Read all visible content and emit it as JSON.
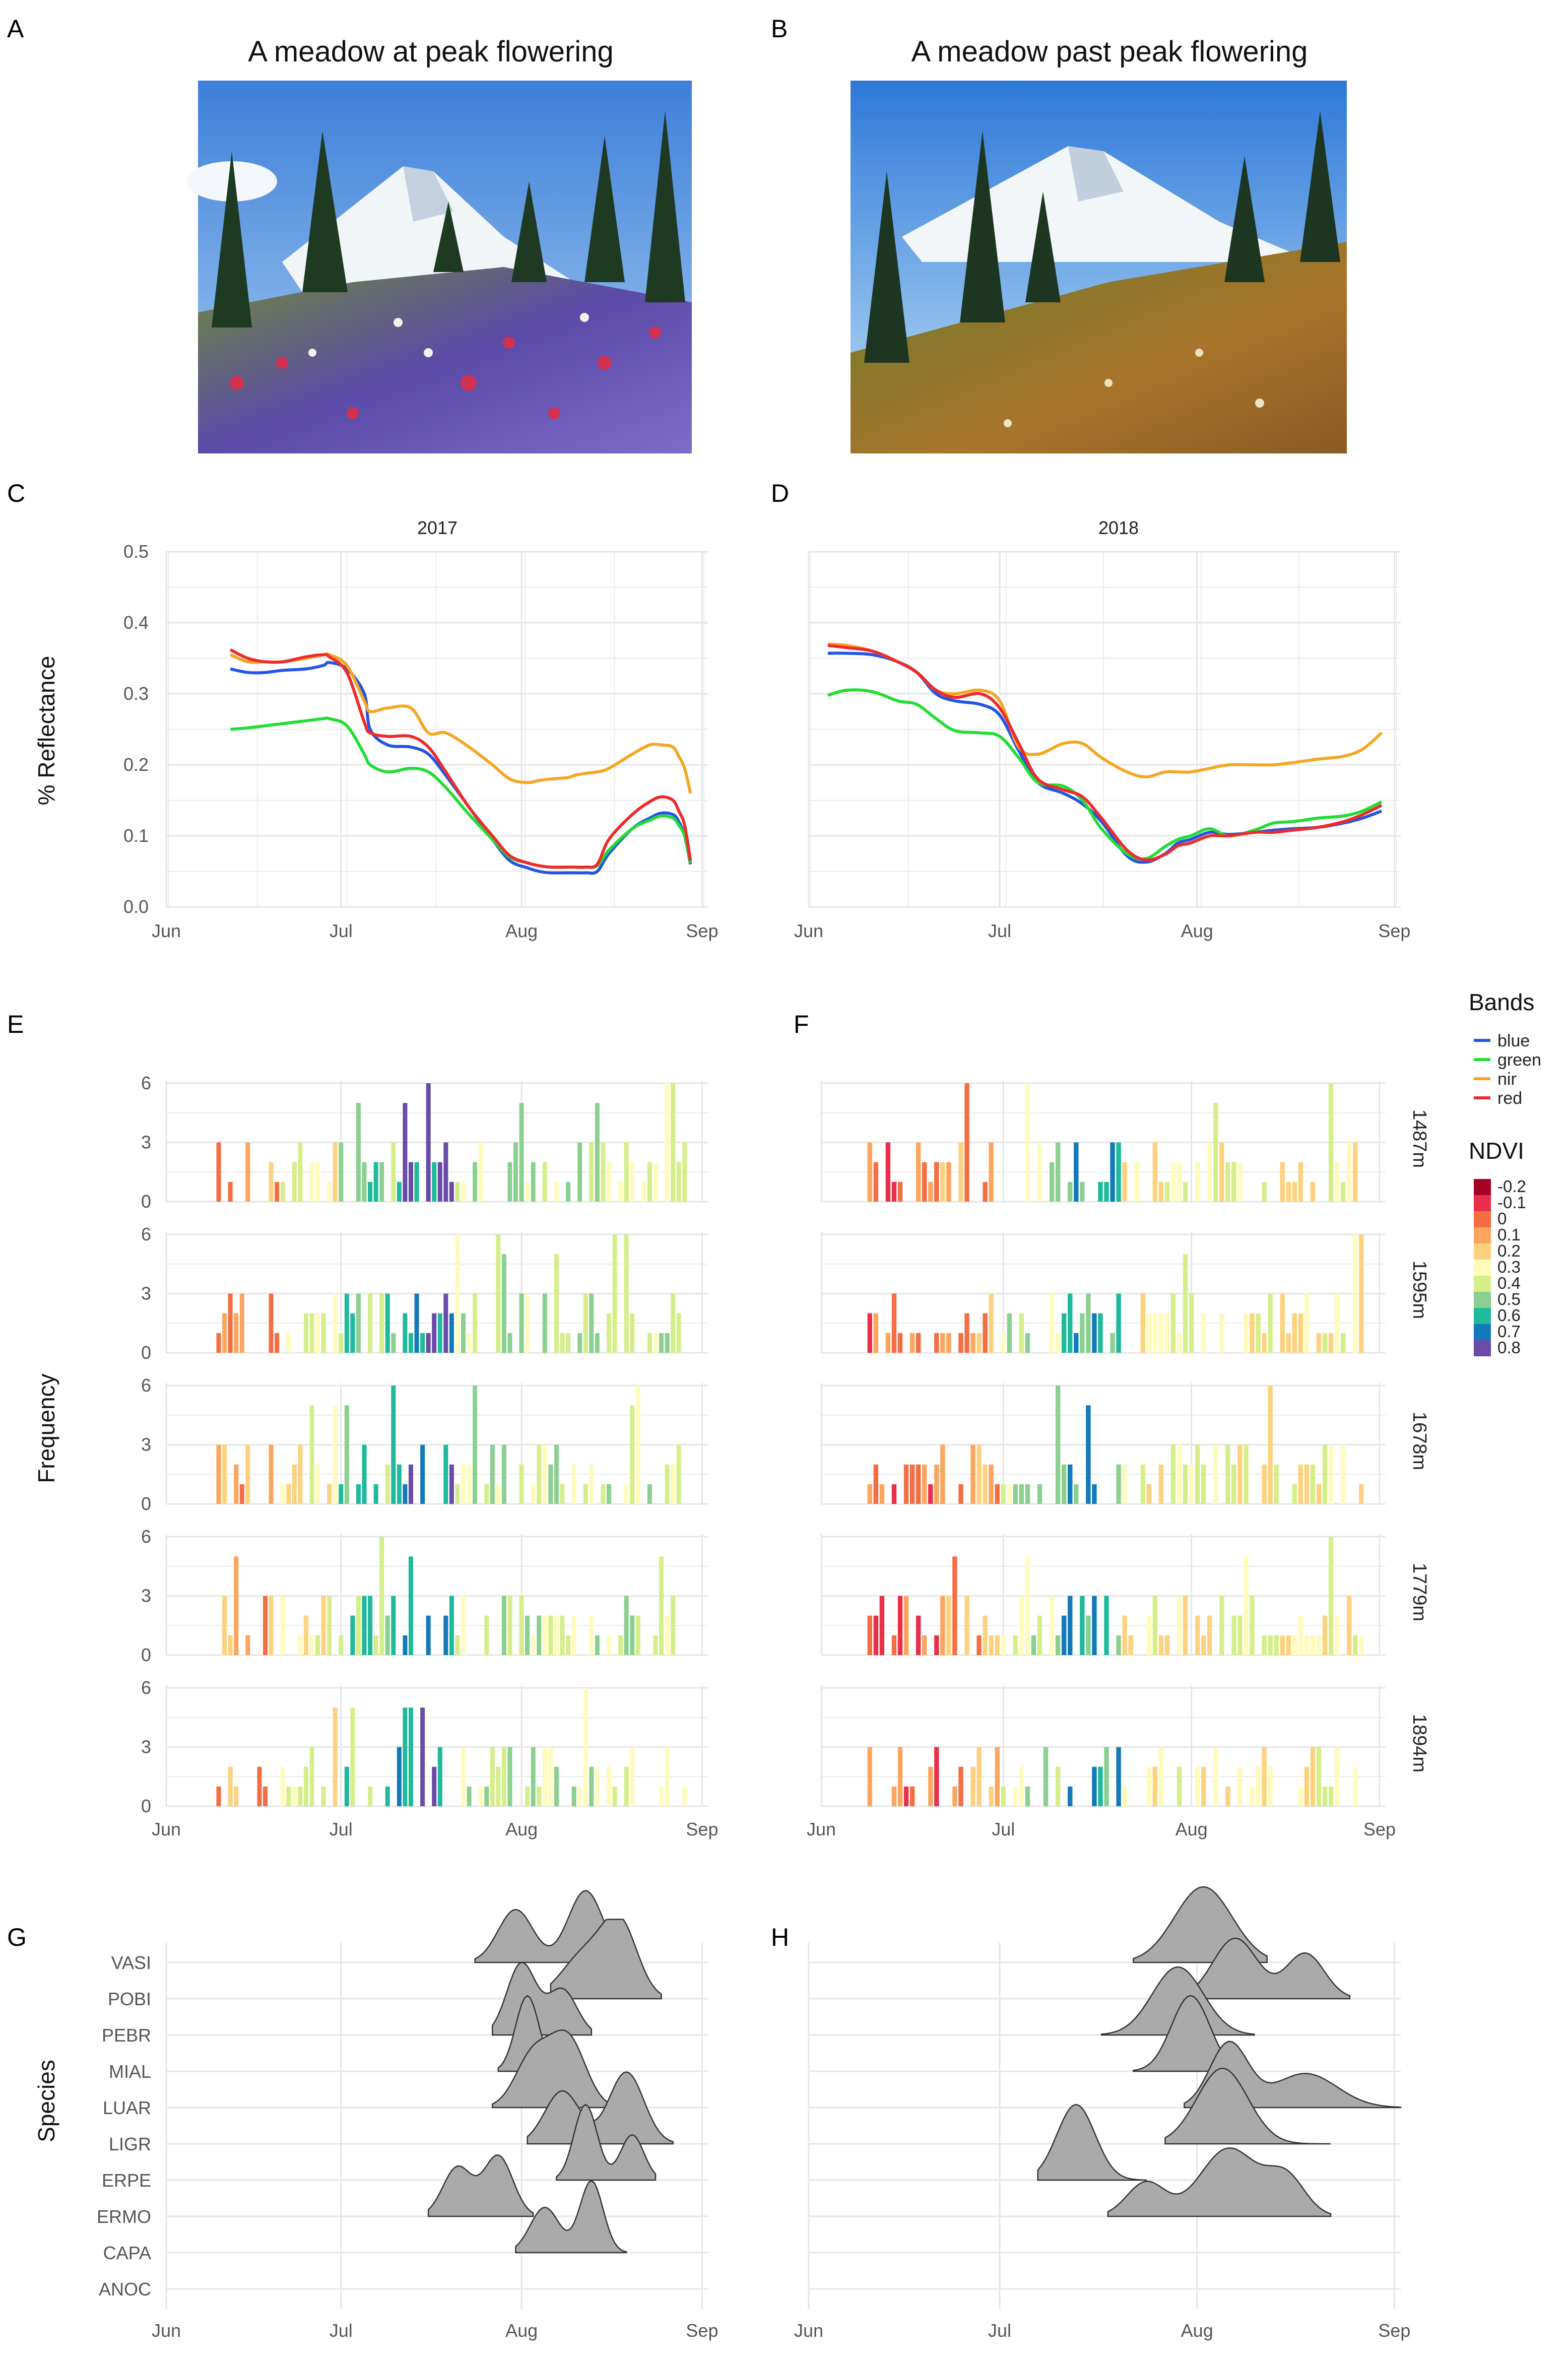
{
  "panel_labels": {
    "A": "A",
    "B": "B",
    "C": "C",
    "D": "D",
    "E": "E",
    "F": "F",
    "G": "G",
    "H": "H"
  },
  "photos": {
    "A": {
      "title": "A meadow at peak flowering"
    },
    "B": {
      "title": "A meadow past peak flowering"
    }
  },
  "colors": {
    "blue": "#2255e6",
    "green": "#22dd33",
    "nir": "#f5a623",
    "red": "#ee2b2b",
    "grid": "#e6e6e6",
    "text": "#555555",
    "ridge_fill": "#aaaaaa",
    "ridge_line": "#333333",
    "ndvi": {
      "-0.2": "#a50026",
      "-0.1": "#e8304a",
      "0": "#f46d43",
      "0.1": "#fca55d",
      "0.2": "#fdd27f",
      "0.3": "#fffbbd",
      "0.4": "#d5ee8a",
      "0.5": "#8bcf91",
      "0.6": "#1fb99c",
      "0.7": "#1479bb",
      "0.8": "#6a4ba8"
    }
  },
  "months": [
    "Jun",
    "Jul",
    "Aug",
    "Sep"
  ],
  "chart_data": [
    {
      "panel": "C",
      "type": "line",
      "title": "2017",
      "ylabel": "% Reflectance",
      "xlabel": "",
      "ylim": [
        0,
        0.5
      ],
      "yticks": [
        "0.0",
        "0.1",
        "0.2",
        "0.3",
        "0.4",
        "0.5"
      ],
      "x_domain": [
        0,
        93
      ],
      "series": [
        {
          "name": "blue",
          "x": [
            11,
            14,
            17,
            20,
            24,
            27,
            28,
            31,
            34,
            35,
            38,
            42,
            45,
            48,
            52,
            56,
            59,
            62,
            64,
            66,
            69,
            70,
            72,
            74,
            76,
            80,
            83,
            85,
            87,
            88,
            89,
            90
          ],
          "y": [
            0.335,
            0.33,
            0.33,
            0.333,
            0.335,
            0.34,
            0.344,
            0.335,
            0.3,
            0.25,
            0.228,
            0.225,
            0.215,
            0.185,
            0.14,
            0.095,
            0.065,
            0.055,
            0.05,
            0.048,
            0.048,
            0.048,
            0.048,
            0.05,
            0.075,
            0.11,
            0.125,
            0.132,
            0.13,
            0.12,
            0.1,
            0.06
          ]
        },
        {
          "name": "green",
          "x": [
            11,
            14,
            17,
            20,
            24,
            27,
            28,
            31,
            34,
            35,
            38,
            42,
            45,
            48,
            52,
            56,
            59,
            62,
            64,
            66,
            69,
            70,
            72,
            74,
            76,
            80,
            83,
            85,
            87,
            88,
            89,
            90
          ],
          "y": [
            0.25,
            0.252,
            0.255,
            0.258,
            0.262,
            0.265,
            0.265,
            0.255,
            0.215,
            0.2,
            0.19,
            0.195,
            0.19,
            0.168,
            0.13,
            0.095,
            0.07,
            0.062,
            0.058,
            0.056,
            0.056,
            0.056,
            0.056,
            0.058,
            0.08,
            0.11,
            0.122,
            0.128,
            0.125,
            0.115,
            0.1,
            0.062
          ]
        },
        {
          "name": "nir",
          "x": [
            11,
            14,
            17,
            20,
            24,
            27,
            28,
            31,
            34,
            35,
            38,
            42,
            45,
            48,
            52,
            56,
            59,
            62,
            64,
            66,
            69,
            70,
            72,
            74,
            76,
            80,
            83,
            85,
            87,
            88,
            89,
            90
          ],
          "y": [
            0.355,
            0.345,
            0.345,
            0.345,
            0.35,
            0.355,
            0.355,
            0.34,
            0.29,
            0.275,
            0.28,
            0.28,
            0.245,
            0.245,
            0.225,
            0.2,
            0.18,
            0.175,
            0.178,
            0.18,
            0.182,
            0.185,
            0.188,
            0.19,
            0.195,
            0.215,
            0.228,
            0.228,
            0.225,
            0.212,
            0.195,
            0.16
          ]
        },
        {
          "name": "red",
          "x": [
            11,
            14,
            17,
            20,
            24,
            27,
            28,
            31,
            34,
            35,
            38,
            42,
            45,
            48,
            52,
            56,
            59,
            62,
            64,
            66,
            69,
            70,
            72,
            74,
            76,
            80,
            83,
            85,
            87,
            88,
            89,
            90
          ],
          "y": [
            0.362,
            0.35,
            0.345,
            0.345,
            0.352,
            0.355,
            0.352,
            0.33,
            0.26,
            0.245,
            0.24,
            0.24,
            0.225,
            0.19,
            0.14,
            0.1,
            0.072,
            0.062,
            0.058,
            0.056,
            0.056,
            0.056,
            0.056,
            0.06,
            0.095,
            0.13,
            0.148,
            0.155,
            0.15,
            0.135,
            0.115,
            0.065
          ]
        }
      ]
    },
    {
      "panel": "D",
      "type": "line",
      "title": "2018",
      "ylabel": "",
      "xlabel": "",
      "ylim": [
        0,
        0.5
      ],
      "x_domain": [
        0,
        93
      ],
      "series": [
        {
          "name": "blue",
          "x": [
            3,
            6,
            10,
            14,
            17,
            20,
            23,
            27,
            30,
            33,
            36,
            40,
            43,
            46,
            50,
            53,
            56,
            58,
            60,
            63,
            66,
            70,
            73,
            76,
            80,
            84,
            87,
            90
          ],
          "y": [
            0.357,
            0.357,
            0.355,
            0.345,
            0.33,
            0.3,
            0.29,
            0.285,
            0.27,
            0.22,
            0.175,
            0.16,
            0.145,
            0.12,
            0.072,
            0.063,
            0.075,
            0.09,
            0.095,
            0.105,
            0.102,
            0.105,
            0.108,
            0.11,
            0.112,
            0.118,
            0.125,
            0.135
          ]
        },
        {
          "name": "green",
          "x": [
            3,
            6,
            10,
            14,
            17,
            20,
            23,
            27,
            30,
            33,
            36,
            40,
            43,
            46,
            50,
            53,
            56,
            58,
            60,
            63,
            66,
            70,
            73,
            76,
            80,
            84,
            87,
            90
          ],
          "y": [
            0.298,
            0.305,
            0.303,
            0.29,
            0.285,
            0.265,
            0.248,
            0.245,
            0.24,
            0.21,
            0.175,
            0.17,
            0.15,
            0.11,
            0.075,
            0.068,
            0.085,
            0.095,
            0.1,
            0.11,
            0.1,
            0.108,
            0.118,
            0.12,
            0.125,
            0.128,
            0.135,
            0.148
          ]
        },
        {
          "name": "nir",
          "x": [
            3,
            6,
            10,
            14,
            17,
            20,
            23,
            27,
            30,
            33,
            36,
            40,
            43,
            46,
            50,
            53,
            56,
            58,
            60,
            63,
            66,
            70,
            73,
            76,
            80,
            84,
            87,
            90
          ],
          "y": [
            0.37,
            0.368,
            0.36,
            0.345,
            0.33,
            0.305,
            0.3,
            0.305,
            0.29,
            0.225,
            0.215,
            0.23,
            0.23,
            0.21,
            0.19,
            0.183,
            0.19,
            0.19,
            0.19,
            0.195,
            0.2,
            0.2,
            0.2,
            0.203,
            0.208,
            0.212,
            0.222,
            0.245
          ]
        },
        {
          "name": "red",
          "x": [
            3,
            6,
            10,
            14,
            17,
            20,
            23,
            27,
            30,
            33,
            36,
            40,
            43,
            46,
            50,
            53,
            56,
            58,
            60,
            63,
            66,
            70,
            73,
            76,
            80,
            84,
            87,
            90
          ],
          "y": [
            0.368,
            0.365,
            0.36,
            0.345,
            0.33,
            0.305,
            0.295,
            0.3,
            0.28,
            0.23,
            0.18,
            0.165,
            0.155,
            0.125,
            0.08,
            0.066,
            0.074,
            0.086,
            0.09,
            0.1,
            0.1,
            0.105,
            0.105,
            0.108,
            0.112,
            0.12,
            0.13,
            0.143
          ]
        }
      ]
    },
    {
      "panel": "E",
      "type": "bar",
      "title": "",
      "ylabel": "Frequency",
      "xlabel": "",
      "ylim": [
        0,
        6
      ],
      "yticks": [
        "0",
        "3",
        "6"
      ],
      "x_domain": [
        0,
        93
      ],
      "facets": [
        "1487m",
        "1595m",
        "1678m",
        "1779m",
        "1894m"
      ],
      "ndvi_levels": [
        "-0.2",
        "-0.1",
        "0",
        "0.1",
        "0.2",
        "0.3",
        "0.4",
        "0.5",
        "0.6",
        "0.7",
        "0.8"
      ],
      "ndvi_regimes": [
        [
          20,
          "0.1"
        ],
        [
          30,
          "0.3"
        ],
        [
          40,
          "0.5"
        ],
        [
          50,
          "0.7"
        ],
        [
          99,
          "0.4"
        ]
      ]
    },
    {
      "panel": "F",
      "type": "bar",
      "title": "",
      "ylabel": "",
      "xlabel": "",
      "ylim": [
        0,
        6
      ],
      "x_domain": [
        0,
        93
      ],
      "facets": [
        "1487m",
        "1595m",
        "1678m",
        "1779m",
        "1894m"
      ],
      "ndvi_regimes": [
        [
          20,
          "0"
        ],
        [
          30,
          "0.1"
        ],
        [
          40,
          "0.4"
        ],
        [
          50,
          "0.6"
        ],
        [
          99,
          "0.3"
        ]
      ]
    },
    {
      "panel": "G",
      "type": "ridgeline",
      "title": "",
      "ylabel": "Species",
      "xlabel": "",
      "x_domain": [
        0,
        93
      ],
      "species": [
        "VASI",
        "POBI",
        "PEBR",
        "MIAL",
        "LUAR",
        "LIGR",
        "ERPE",
        "ERMO",
        "CAPA",
        "ANOC"
      ],
      "ridges": [
        {
          "species": "VASI",
          "start": 53,
          "end": 77,
          "peaks": [
            [
              60,
              0.7,
              3
            ],
            [
              72,
              0.95,
              3
            ]
          ]
        },
        {
          "species": "POBI",
          "start": 66,
          "end": 85,
          "peaks": [
            [
              72,
              0.6,
              4
            ],
            [
              78,
              0.9,
              3
            ]
          ]
        },
        {
          "species": "PEBR",
          "start": 56,
          "end": 73,
          "peaks": [
            [
              61,
              0.95,
              2.5
            ],
            [
              68,
              0.6,
              2.5
            ]
          ]
        },
        {
          "species": "MIAL",
          "start": 57,
          "end": 67,
          "peaks": [
            [
              62,
              1.0,
              2
            ]
          ]
        },
        {
          "species": "LUAR",
          "start": 56,
          "end": 76,
          "peaks": [
            [
              63,
              0.7,
              3
            ],
            [
              69,
              0.9,
              3
            ]
          ]
        },
        {
          "species": "LIGR",
          "start": 62,
          "end": 87,
          "peaks": [
            [
              68,
              0.7,
              3
            ],
            [
              79,
              0.95,
              3
            ]
          ]
        },
        {
          "species": "ERPE",
          "start": 67,
          "end": 84,
          "peaks": [
            [
              72,
              1.0,
              2
            ],
            [
              80,
              0.6,
              2
            ]
          ]
        },
        {
          "species": "ERMO",
          "start": 45,
          "end": 63,
          "peaks": [
            [
              50,
              0.65,
              2.5
            ],
            [
              57,
              0.8,
              2.5
            ]
          ]
        },
        {
          "species": "CAPA",
          "start": 60,
          "end": 79,
          "peaks": [
            [
              65,
              0.6,
              2.5
            ],
            [
              73,
              0.95,
              2
            ]
          ]
        },
        {
          "species": "ANOC",
          "start": 0,
          "end": 0,
          "peaks": []
        }
      ]
    },
    {
      "panel": "H",
      "type": "ridgeline",
      "title": "",
      "ylabel": "",
      "xlabel": "",
      "x_domain": [
        0,
        93
      ],
      "species": [
        "VASI",
        "POBI",
        "PEBR",
        "MIAL",
        "LUAR",
        "LIGR",
        "ERPE",
        "ERMO",
        "CAPA",
        "ANOC"
      ],
      "ridges": [
        {
          "species": "VASI",
          "start": 51,
          "end": 72,
          "peaks": [
            [
              62,
              1.0,
              4.5
            ]
          ]
        },
        {
          "species": "POBI",
          "start": 59,
          "end": 85,
          "peaks": [
            [
              67,
              0.8,
              3.5
            ],
            [
              78,
              0.6,
              3
            ]
          ]
        },
        {
          "species": "PEBR",
          "start": 46,
          "end": 70,
          "peaks": [
            [
              58,
              0.9,
              4
            ]
          ]
        },
        {
          "species": "MIAL",
          "start": 51,
          "end": 69,
          "peaks": [
            [
              60,
              1.0,
              3
            ]
          ]
        },
        {
          "species": "LUAR",
          "start": 59,
          "end": 93,
          "peaks": [
            [
              66,
              0.85,
              3
            ],
            [
              78,
              0.45,
              5
            ]
          ]
        },
        {
          "species": "LIGR",
          "start": 56,
          "end": 82,
          "peaks": [
            [
              65,
              1.0,
              4
            ]
          ]
        },
        {
          "species": "ERPE",
          "start": 36,
          "end": 53,
          "peaks": [
            [
              42,
              1.0,
              3
            ]
          ]
        },
        {
          "species": "ERMO",
          "start": 47,
          "end": 82,
          "peaks": [
            [
              53,
              0.45,
              3
            ],
            [
              66,
              0.9,
              4.5
            ],
            [
              75,
              0.5,
              3
            ]
          ]
        },
        {
          "species": "CAPA",
          "start": 0,
          "end": 0,
          "peaks": []
        },
        {
          "species": "ANOC",
          "start": 0,
          "end": 0,
          "peaks": []
        }
      ]
    }
  ],
  "legend_bands": {
    "title": "Bands",
    "items": [
      "blue",
      "green",
      "nir",
      "red"
    ]
  },
  "legend_ndvi": {
    "title": "NDVI",
    "items": [
      "-0.2",
      "-0.1",
      "0",
      "0.1",
      "0.2",
      "0.3",
      "0.4",
      "0.5",
      "0.6",
      "0.7",
      "0.8"
    ]
  }
}
